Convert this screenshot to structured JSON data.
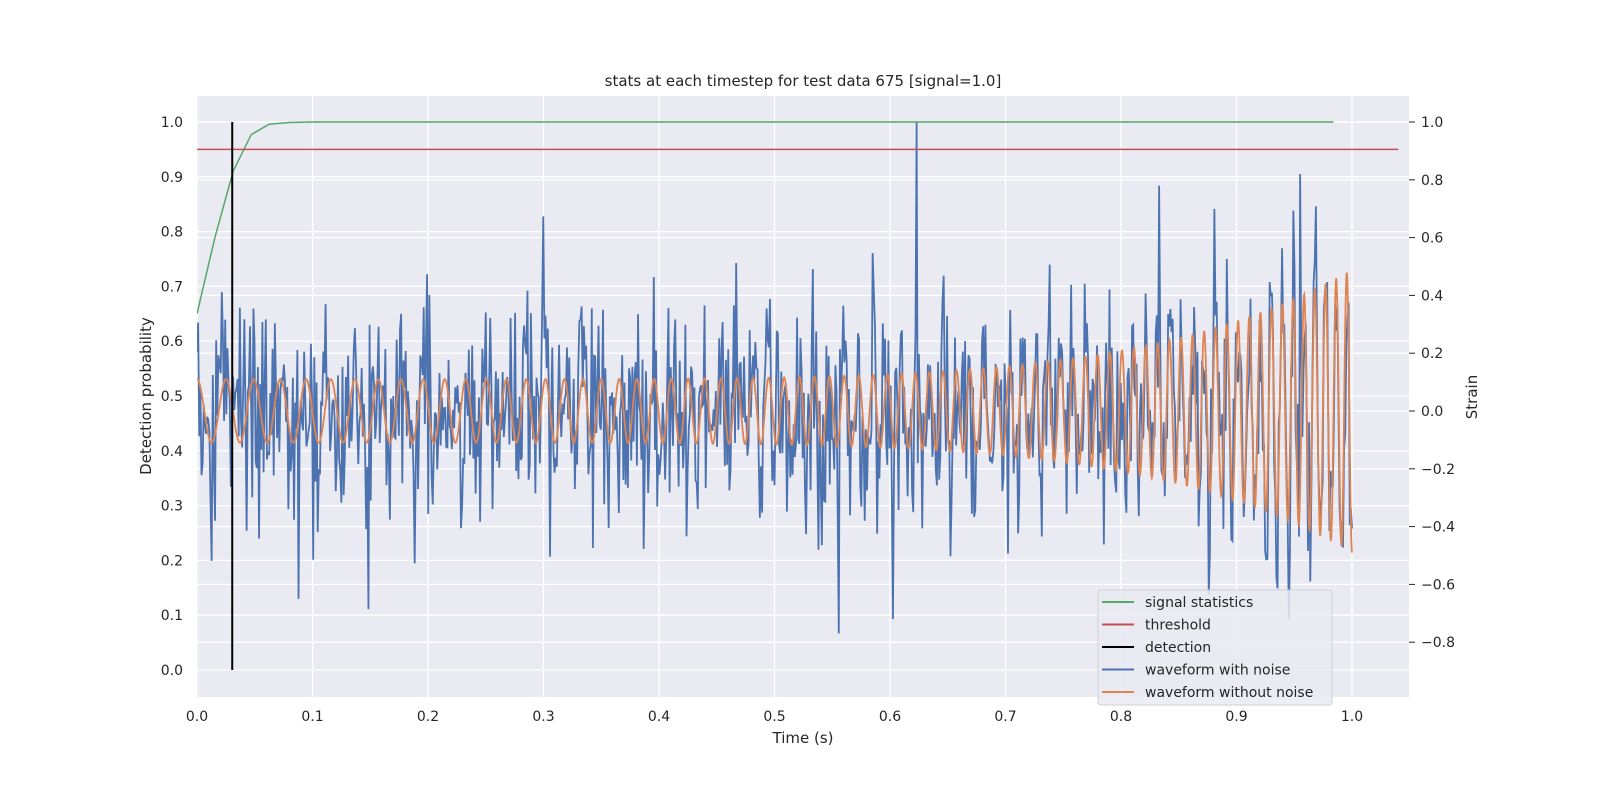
{
  "chart_data": {
    "type": "line",
    "title": "stats at each timestep for test data 675 [signal=1.0]",
    "xlabel": "Time (s)",
    "ylabel": "Detection probability",
    "y2label": "Strain",
    "xlim": [
      0.0,
      1.05
    ],
    "ylim": [
      -0.05,
      1.05
    ],
    "y2lim": [
      -0.97,
      1.08
    ],
    "xticks": [
      "0.0",
      "0.1",
      "0.2",
      "0.3",
      "0.4",
      "0.5",
      "0.6",
      "0.7",
      "0.8",
      "0.9",
      "1.0"
    ],
    "yticks": [
      "0.0",
      "0.1",
      "0.2",
      "0.3",
      "0.4",
      "0.5",
      "0.6",
      "0.7",
      "0.8",
      "0.9",
      "1.0"
    ],
    "y2ticks": [
      "−0.8",
      "−0.6",
      "−0.4",
      "−0.2",
      "0.0",
      "0.2",
      "0.4",
      "0.6",
      "0.8",
      "1.0"
    ],
    "grid": true,
    "legend_position": "lower-right",
    "colors": {
      "background": "#eaeaf2",
      "grid": "#ffffff",
      "signal_statistics": "#55a868",
      "threshold": "#c44e52",
      "detection": "#000000",
      "waveform_with_noise": "#4c72b0",
      "waveform_without_noise": "#dd8452"
    },
    "legend": [
      {
        "label": "signal statistics",
        "key": "signal_statistics"
      },
      {
        "label": "threshold",
        "key": "threshold"
      },
      {
        "label": "detection",
        "key": "detection"
      },
      {
        "label": "waveform with noise",
        "key": "waveform_with_noise"
      },
      {
        "label": "waveform without noise",
        "key": "waveform_without_noise"
      }
    ],
    "series": [
      {
        "key": "signal_statistics",
        "axis": "left",
        "x": [
          0.0,
          0.0156,
          0.0313,
          0.0469,
          0.0625,
          0.08,
          0.1,
          0.2,
          0.4,
          0.6,
          0.8,
          0.984
        ],
        "y": [
          0.65,
          0.79,
          0.91,
          0.977,
          0.996,
          0.999,
          1.0,
          1.0,
          1.0,
          1.0,
          1.0,
          1.0
        ]
      },
      {
        "key": "threshold",
        "axis": "left",
        "x": [
          0.0,
          1.04
        ],
        "y": [
          0.95,
          0.95
        ]
      },
      {
        "key": "detection",
        "axis": "left",
        "x": [
          0.0305,
          0.0305
        ],
        "y": [
          0.0,
          1.0
        ]
      }
    ],
    "waveform_without_noise_model": {
      "axis": "right",
      "x_range": [
        0.0,
        1.0
      ],
      "base_amplitude": 0.11,
      "amplitude_rise": 0.38,
      "start_frequency_hz": 39,
      "end_frequency_hz": 110
    },
    "waveform_with_noise_model": {
      "axis": "right",
      "x_range": [
        0.0,
        1.0
      ],
      "samples": 1024,
      "noise_sigma": 0.18,
      "notable_peaks": [
        {
          "x": 0.556,
          "y": -0.77
        },
        {
          "x": 0.623,
          "y": 1.0
        },
        {
          "x": 0.955,
          "y": 0.82
        },
        {
          "x": 0.088,
          "y": -0.65
        }
      ]
    }
  }
}
